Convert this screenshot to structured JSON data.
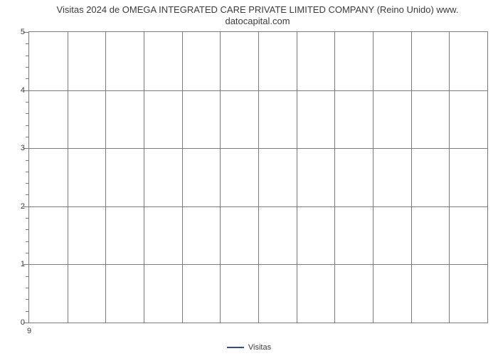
{
  "chart": {
    "type": "line",
    "title_line1": "Visitas 2024 de OMEGA INTEGRATED CARE PRIVATE LIMITED COMPANY (Reino Unido) www.",
    "title_line2": "datocapital.com",
    "title_fontsize": 13,
    "title_color": "#3a3a3a",
    "background_color": "#ffffff",
    "border_color": "#7a7a7a",
    "grid_color": "#7a7a7a",
    "tick_color": "#7a7a7a",
    "y": {
      "min": 0,
      "max": 5,
      "major_ticks": [
        0,
        1,
        2,
        3,
        4,
        5
      ],
      "minor_per_major": 4,
      "label_fontsize": 11,
      "label_color": "#3a3a3a"
    },
    "x": {
      "label": "9",
      "columns": 12,
      "label_fontsize": 11,
      "label_color": "#3a3a3a"
    },
    "legend": {
      "label": "Visitas",
      "color": "#37479a",
      "fontsize": 11,
      "text_color": "#3a3a3a"
    }
  }
}
